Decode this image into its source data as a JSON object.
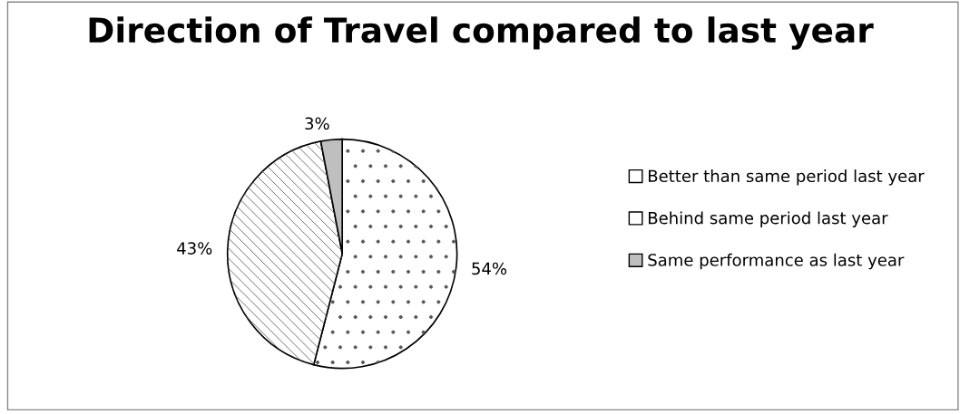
{
  "chart_data": {
    "type": "pie",
    "title": "Direction of Travel compared to last year",
    "categories": [
      "Better than same period last year",
      "Behind same period last year",
      "Same performance as last year"
    ],
    "values": [
      54,
      43,
      3
    ],
    "value_labels": [
      "54%",
      "43%",
      "3%"
    ],
    "colors": [
      "#ffffff",
      "#ffffff",
      "#bfbfbf"
    ],
    "legend": "right"
  }
}
